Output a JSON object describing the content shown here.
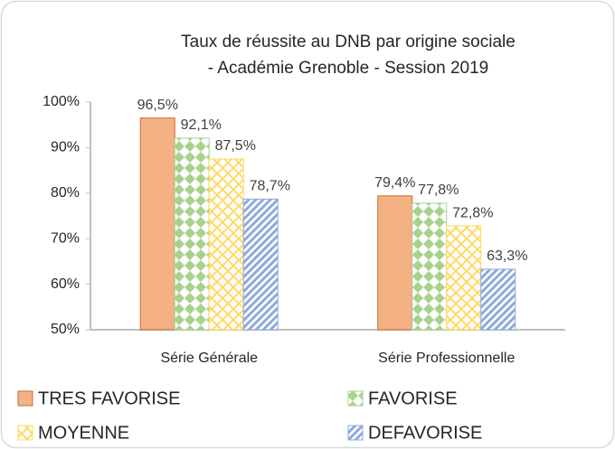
{
  "chart_data": {
    "type": "bar",
    "title": "Taux de réussite au DNB par origine sociale",
    "subtitle": "- Académie Grenoble - Session 2019",
    "categories": [
      "Série Générale",
      "Série Professionnelle"
    ],
    "series": [
      {
        "name": "TRES FAVORISE",
        "color": "#f4b183",
        "pattern": "solid",
        "values": [
          96.5,
          79.4
        ],
        "value_labels": [
          "96,5%",
          "79,4%"
        ]
      },
      {
        "name": "FAVORISE",
        "color": "#a9d18e",
        "pattern": "diamond",
        "values": [
          92.1,
          77.8
        ],
        "value_labels": [
          "92,1%",
          "77,8%"
        ]
      },
      {
        "name": "MOYENNE",
        "color": "#ffd966",
        "pattern": "cross",
        "values": [
          87.5,
          72.8
        ],
        "value_labels": [
          "87,5%",
          "72,8%"
        ]
      },
      {
        "name": "DEFAVORISE",
        "color": "#8faadc",
        "pattern": "diagonal",
        "values": [
          78.7,
          63.3
        ],
        "value_labels": [
          "78,7%",
          "63,3%"
        ]
      }
    ],
    "ylim": [
      50,
      100
    ],
    "yticks": [
      {
        "value": 50,
        "label": "50%"
      },
      {
        "value": 60,
        "label": "60%"
      },
      {
        "value": 70,
        "label": "70%"
      },
      {
        "value": 80,
        "label": "80%"
      },
      {
        "value": 90,
        "label": "90%"
      },
      {
        "value": 100,
        "label": "100%"
      }
    ],
    "grid": false,
    "legend": "bottom"
  }
}
